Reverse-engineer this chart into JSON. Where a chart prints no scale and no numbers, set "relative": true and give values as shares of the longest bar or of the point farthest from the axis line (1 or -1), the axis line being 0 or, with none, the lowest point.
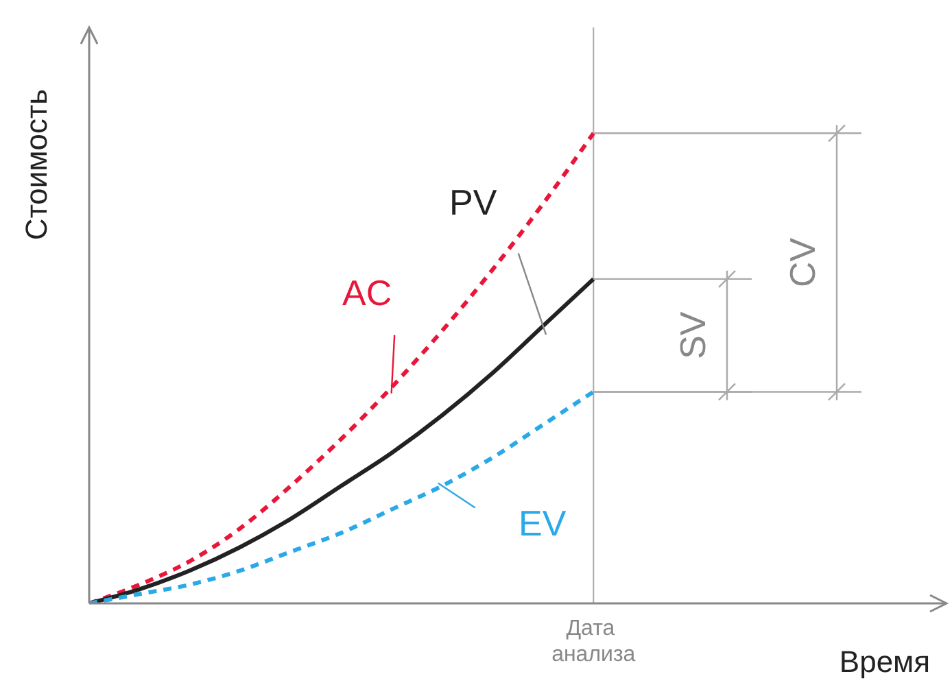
{
  "chart_data": {
    "type": "line",
    "relative": true,
    "xlabel": "Время",
    "ylabel": "Стоимость",
    "categories": [
      null,
      null,
      null,
      null,
      null,
      null,
      null,
      null,
      null,
      null,
      null,
      null,
      null,
      null,
      null,
      null,
      null,
      null
    ],
    "series": [
      {
        "name": "AC",
        "color": "#e8173a",
        "line_style": "dashed",
        "values": [
          0,
          0.04,
          0.09,
          0.16,
          0.25,
          0.35,
          0.46,
          0.58,
          0.71,
          0.85,
          1,
          null,
          null,
          null,
          null,
          null,
          null,
          null
        ]
      },
      {
        "name": "PV",
        "color": "#222222",
        "line_style": "solid",
        "values": [
          0,
          0.03,
          0.07,
          0.12,
          0.18,
          0.25,
          0.32,
          0.4,
          0.49,
          0.59,
          0.69,
          null,
          null,
          null,
          null,
          null,
          null,
          null
        ]
      },
      {
        "name": "EV",
        "color": "#29a9e8",
        "line_style": "dashed",
        "values": [
          0,
          0.02,
          0.04,
          0.07,
          0.11,
          0.15,
          0.2,
          0.25,
          0.31,
          0.38,
          0.45,
          null,
          null,
          null,
          null,
          null,
          null,
          null
        ]
      }
    ],
    "ref_lines": [
      {
        "axis": "x",
        "label": "Дата анализа",
        "color": "#aaaaaa"
      }
    ],
    "annotations": [
      "SV",
      "CV"
    ],
    "legend": false,
    "grid": false,
    "marker": "none"
  }
}
